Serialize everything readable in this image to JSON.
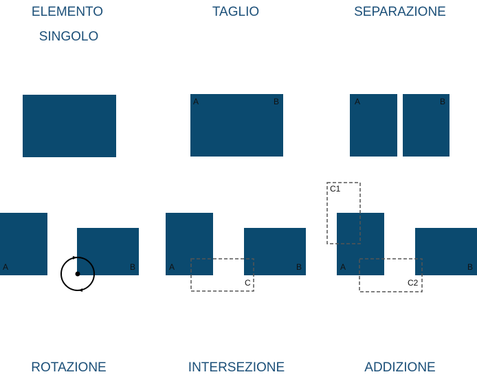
{
  "panels": [
    {
      "title": [
        "ELEMENTO",
        "SINGOLO"
      ]
    },
    {
      "title": [
        "TAGLIO"
      ],
      "labels": [
        "A",
        "B"
      ]
    },
    {
      "title": [
        "SEPARAZIONE"
      ],
      "labels": [
        "A",
        "B"
      ]
    },
    {
      "title": [
        "ROTAZIONE"
      ],
      "labels": [
        "A",
        "B"
      ]
    },
    {
      "title": [
        "INTERSEZIONE"
      ],
      "labels": [
        "A",
        "B",
        "C"
      ]
    },
    {
      "title": [
        "ADDIZIONE"
      ],
      "labels": [
        "C1",
        "A",
        "C2",
        "B"
      ]
    }
  ]
}
